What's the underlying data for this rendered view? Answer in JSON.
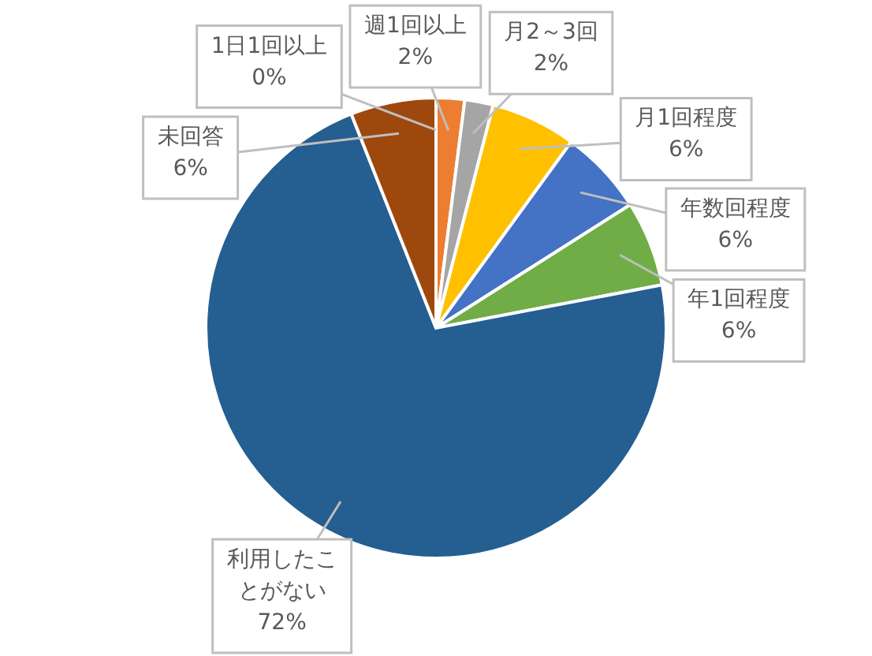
{
  "chart_data": {
    "type": "pie",
    "categories": [
      "1日1回以上",
      "週1回以上",
      "月2～3回",
      "月1回程度",
      "年数回程度",
      "年1回程度",
      "利用したことがない",
      "未回答"
    ],
    "values": [
      0,
      2,
      2,
      6,
      6,
      6,
      72,
      6
    ],
    "colors": [
      "#5b9bd5",
      "#ed7d31",
      "#a5a5a5",
      "#ffc000",
      "#4472c4",
      "#70ad47",
      "#255e91",
      "#9e480e"
    ],
    "value_labels": [
      "0%",
      "2%",
      "2%",
      "6%",
      "6%",
      "6%",
      "72%",
      "6%"
    ]
  }
}
